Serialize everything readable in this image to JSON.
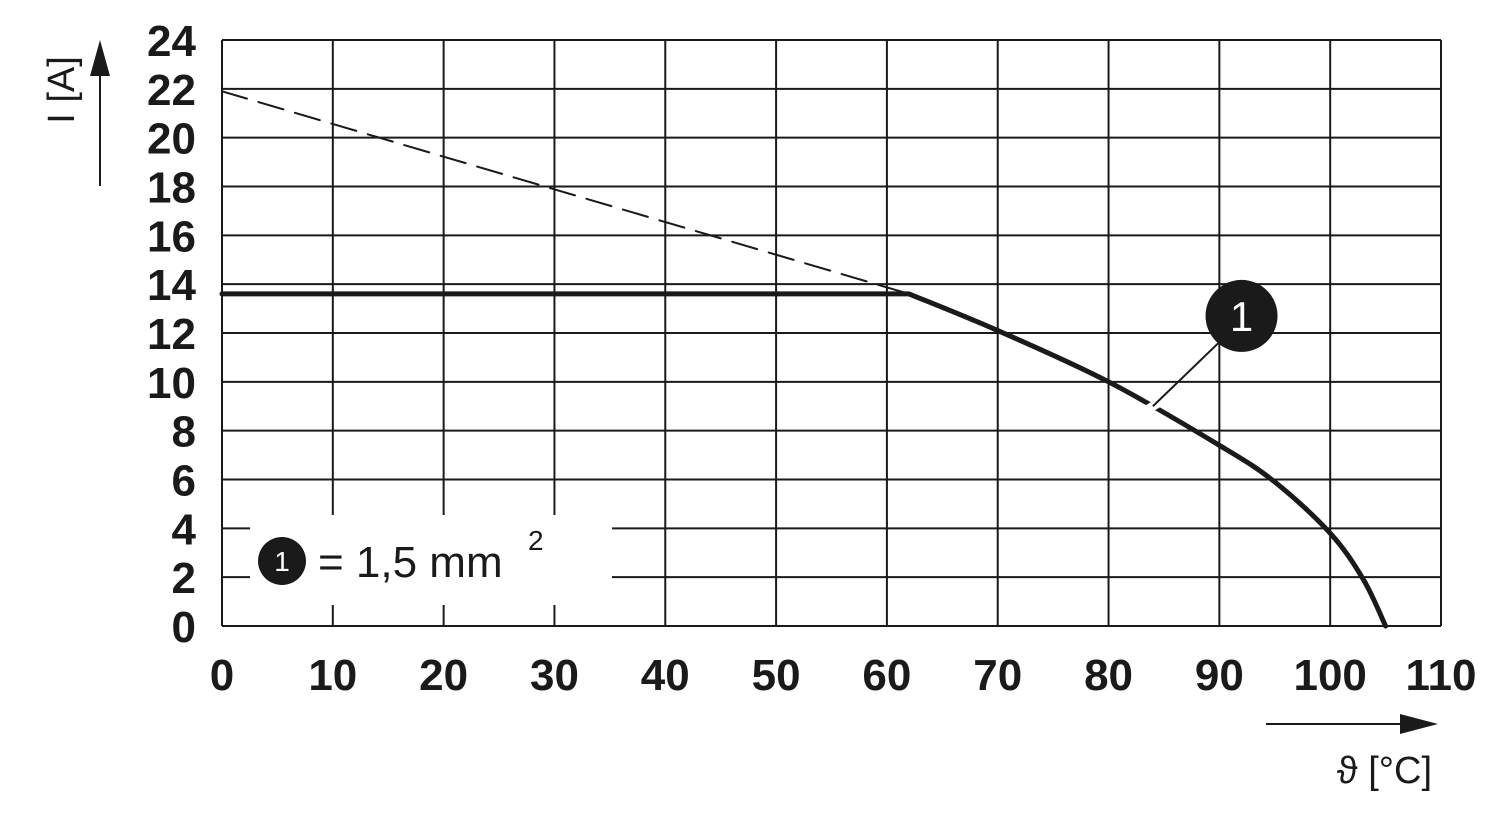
{
  "chart_data": {
    "type": "line",
    "x_ticks": [
      "0",
      "10",
      "20",
      "30",
      "40",
      "50",
      "60",
      "70",
      "80",
      "90",
      "100",
      "110"
    ],
    "y_ticks": [
      "0",
      "2",
      "4",
      "6",
      "8",
      "10",
      "12",
      "14",
      "16",
      "18",
      "20",
      "22",
      "24"
    ],
    "xlim": [
      0,
      110
    ],
    "ylim": [
      0,
      24
    ],
    "xlabel": "ϑ [°C]",
    "ylabel": "I [A]",
    "grid": true,
    "series": [
      {
        "name": "1",
        "style": "solid",
        "color": "#1a1a1a",
        "x": [
          0,
          62,
          70,
          80,
          90,
          95,
          100,
          103,
          105
        ],
        "y": [
          13.6,
          13.6,
          12.1,
          10.0,
          7.4,
          5.9,
          3.8,
          1.9,
          0
        ]
      },
      {
        "name": "",
        "style": "dashed",
        "color": "#1a1a1a",
        "x": [
          0,
          62
        ],
        "y": [
          21.9,
          13.6
        ]
      }
    ],
    "marker": {
      "label": "1",
      "x": 92,
      "y": 12.7,
      "points_to": {
        "x": 84,
        "y": 9.0
      }
    },
    "legend": {
      "position": "bottom-left",
      "marker_label": "1",
      "text": "= 1,5 mm",
      "superscript": "2"
    }
  }
}
